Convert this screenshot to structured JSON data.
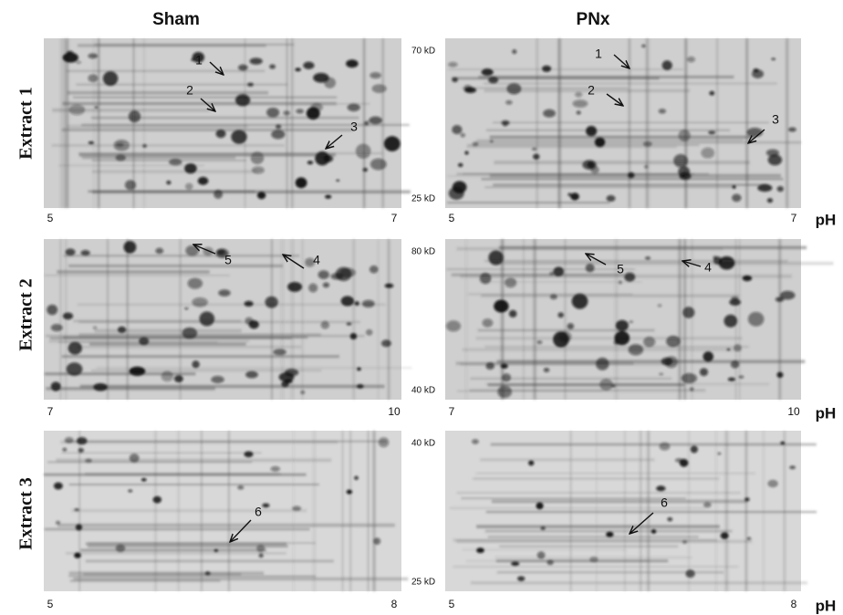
{
  "columns": [
    "Sham",
    "PNx"
  ],
  "rows": [
    {
      "label": "Extract 1",
      "mw": [
        "70 kD",
        "25 kD"
      ],
      "ph": [
        "5",
        "7"
      ],
      "unit": "pH",
      "spots": [
        [
          "1",
          "2",
          "3"
        ],
        [
          "1",
          "2",
          "3"
        ]
      ]
    },
    {
      "label": "Extract 2",
      "mw": [
        "80 kD",
        "40 kD"
      ],
      "ph": [
        "7",
        "10"
      ],
      "unit": "pH",
      "spots": [
        [
          "5",
          "4"
        ],
        [
          "5",
          "4"
        ]
      ]
    },
    {
      "label": "Extract 3",
      "mw": [
        "40 kD",
        "25 kD"
      ],
      "ph": [
        "5",
        "8"
      ],
      "unit": "pH",
      "spots": [
        [
          "6"
        ],
        [
          "6"
        ]
      ]
    }
  ]
}
